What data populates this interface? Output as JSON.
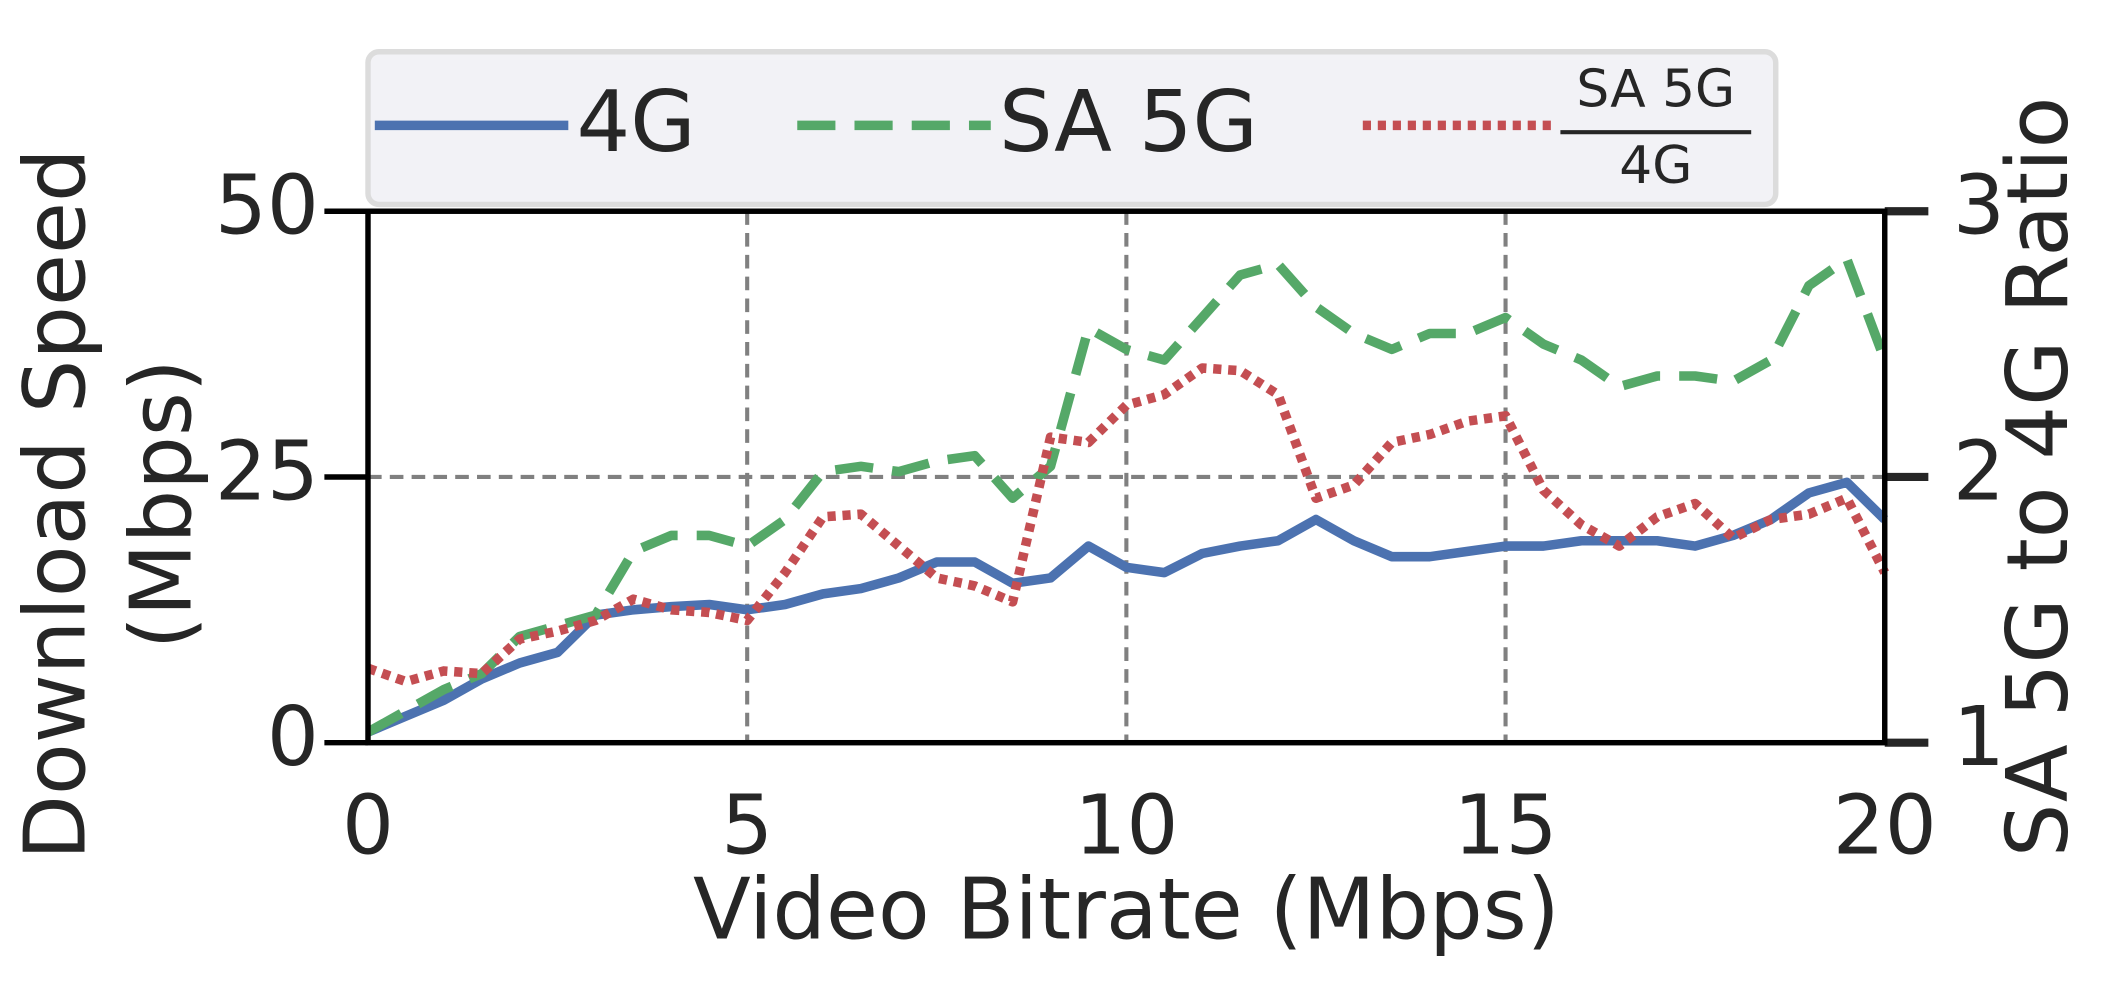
{
  "chart_data": {
    "type": "line",
    "xlabel": "Video Bitrate (Mbps)",
    "ylabel": [
      "Download Speed",
      "(Mbps)"
    ],
    "y2label": "SA 5G to 4G Ratio",
    "x": [
      0,
      0.5,
      1,
      1.5,
      2,
      2.5,
      3,
      3.5,
      4,
      4.5,
      5,
      5.5,
      6,
      6.5,
      7,
      7.5,
      8,
      8.5,
      9,
      9.5,
      10,
      10.5,
      11,
      11.5,
      12,
      12.5,
      13,
      13.5,
      14,
      14.5,
      15,
      15.5,
      16,
      16.5,
      17,
      17.5,
      18,
      18.5,
      19,
      19.5,
      20
    ],
    "series": [
      {
        "name": "4G",
        "color": "#4c72b0",
        "dash": "solid",
        "values": [
          1,
          2.5,
          4,
          6,
          7.5,
          8.5,
          12,
          12.5,
          12.8,
          13,
          12.5,
          13,
          14,
          14.5,
          15.5,
          17,
          17,
          15,
          15.5,
          18.5,
          16.5,
          16,
          17.8,
          18.5,
          19,
          21,
          19,
          17.5,
          17.5,
          18,
          18.5,
          18.5,
          19,
          19,
          19,
          18.5,
          19.5,
          21,
          23.5,
          24.5,
          21
        ]
      },
      {
        "name": "SA 5G",
        "color": "#55a868",
        "dash": "dashed",
        "values": [
          1,
          3,
          5,
          6.5,
          10,
          11,
          12,
          18,
          19.5,
          19.5,
          18.5,
          21,
          25.5,
          26,
          25.5,
          26.5,
          27,
          23,
          26,
          39,
          37,
          36,
          40,
          44,
          45,
          41,
          38.5,
          37,
          38.5,
          38.5,
          40,
          37.5,
          36,
          33.5,
          34.5,
          34.5,
          34,
          36,
          43,
          45.5,
          36
        ]
      },
      {
        "name": [
          "SA 5G",
          "4G"
        ],
        "color": "#c44e52",
        "dash": "dotted",
        "axis": "y2",
        "values": [
          1.28,
          1.23,
          1.27,
          1.26,
          1.39,
          1.42,
          1.46,
          1.54,
          1.5,
          1.49,
          1.46,
          1.64,
          1.85,
          1.86,
          1.74,
          1.62,
          1.59,
          1.53,
          2.15,
          2.13,
          2.27,
          2.31,
          2.41,
          2.4,
          2.31,
          1.92,
          1.97,
          2.13,
          2.16,
          2.21,
          2.23,
          1.95,
          1.82,
          1.74,
          1.85,
          1.9,
          1.77,
          1.84,
          1.86,
          1.92,
          1.64
        ]
      }
    ],
    "xlim": [
      0,
      20
    ],
    "xticks": [
      0,
      5,
      10,
      15,
      20
    ],
    "ylim": [
      0,
      50
    ],
    "yticks": [
      0,
      25,
      50
    ],
    "y2lim": [
      1,
      3
    ],
    "y2ticks": [
      1,
      2,
      3
    ],
    "grid": true,
    "legend": "top"
  }
}
